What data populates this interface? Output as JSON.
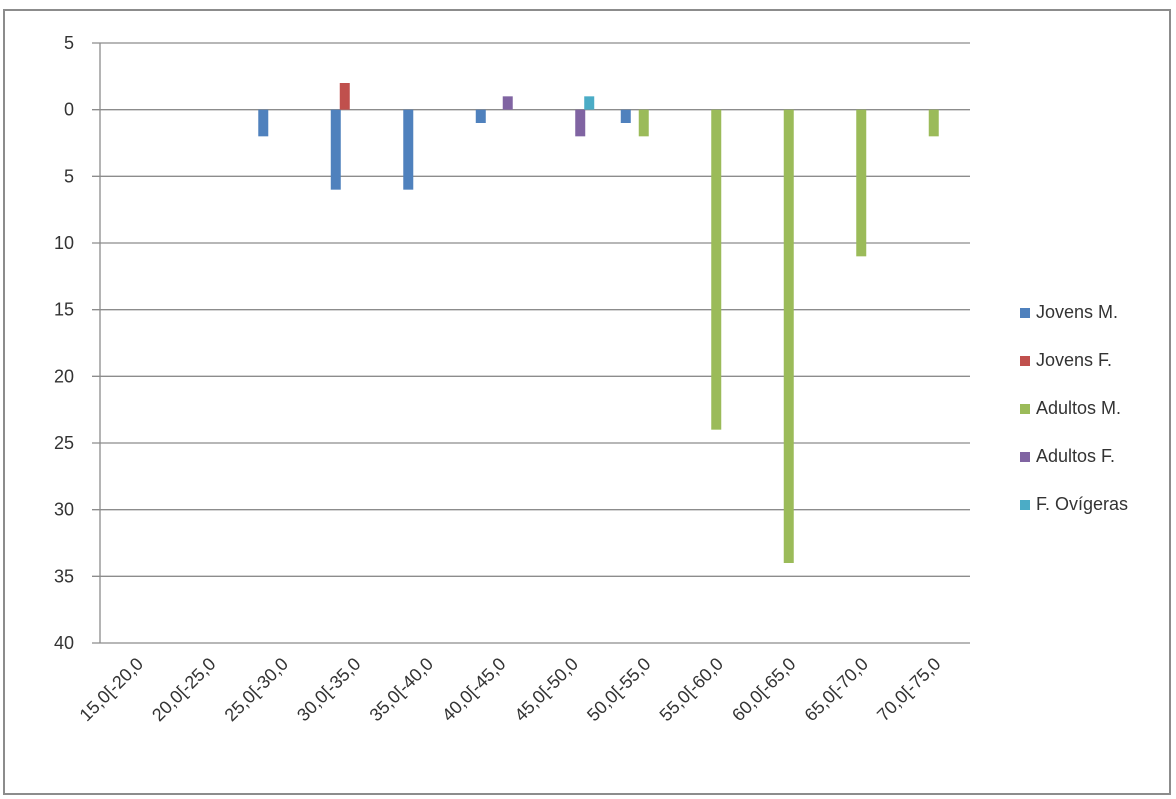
{
  "chart_data": {
    "type": "bar",
    "title": "",
    "xlabel": "",
    "ylabel": "",
    "y_axis_reversed": true,
    "ylim": [
      -5,
      40
    ],
    "y_tick_labels": [
      "5",
      "0",
      "5",
      "10",
      "15",
      "20",
      "25",
      "30",
      "35",
      "40"
    ],
    "y_tick_values": [
      -5,
      0,
      5,
      10,
      15,
      20,
      25,
      30,
      35,
      40
    ],
    "grid": true,
    "legend_position": "right",
    "categories": [
      "15,0[-20,0",
      "20,0[-25,0",
      "25,0[-30,0",
      "30,0[-35,0",
      "35,0[-40,0",
      "40,0[-45,0",
      "45,0[-50,0",
      "50,0[-55,0",
      "55,0[-60,0",
      "60,0[-65,0",
      "65,0[-70,0",
      "70,0[-75,0"
    ],
    "series": [
      {
        "name": "Jovens M.",
        "color": "#4f81bd",
        "values": [
          0,
          0,
          2,
          6,
          6,
          1,
          0,
          1,
          0,
          0,
          0,
          0
        ]
      },
      {
        "name": "Jovens F.",
        "color": "#c0504d",
        "values": [
          0,
          0,
          0,
          -2,
          0,
          0,
          0,
          0,
          0,
          0,
          0,
          0
        ]
      },
      {
        "name": "Adultos M.",
        "color": "#9bbb59",
        "values": [
          0,
          0,
          0,
          0,
          0,
          0,
          0,
          2,
          24,
          34,
          11,
          2
        ]
      },
      {
        "name": "Adultos F.",
        "color": "#8064a2",
        "values": [
          0,
          0,
          0,
          0,
          0,
          -1,
          2,
          0,
          0,
          0,
          0,
          0
        ]
      },
      {
        "name": "F. Ovígeras",
        "color": "#4bacc6",
        "values": [
          0,
          0,
          0,
          0,
          0,
          0,
          -1,
          0,
          0,
          0,
          0,
          0
        ]
      }
    ]
  }
}
